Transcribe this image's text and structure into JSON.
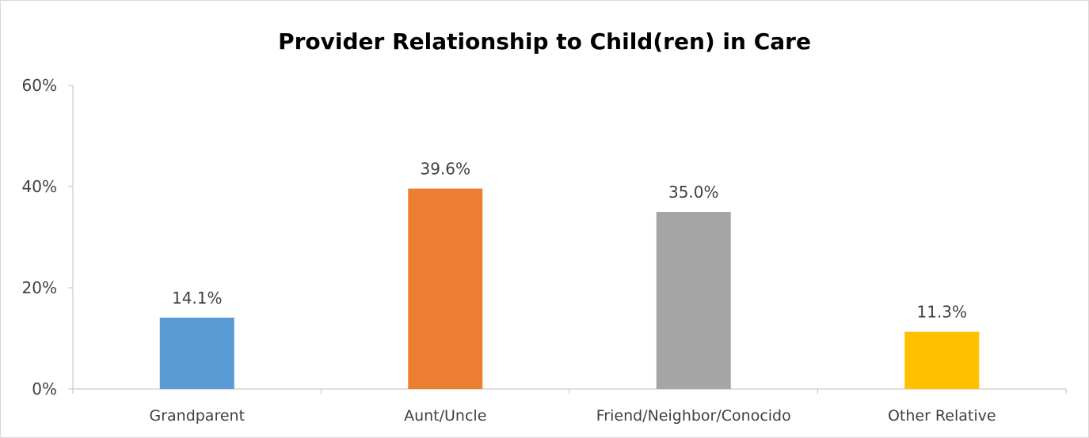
{
  "chart_data": {
    "type": "bar",
    "title": "Provider Relationship to Child(ren) in Care",
    "xlabel": "",
    "ylabel": "",
    "categories": [
      "Grandparent",
      "Aunt/Uncle",
      "Friend/Neighbor/Conocido",
      "Other Relative"
    ],
    "values": [
      14.1,
      39.6,
      35.0,
      11.3
    ],
    "data_labels": [
      "14.1%",
      "39.6%",
      "35.0%",
      "11.3%"
    ],
    "colors": [
      "#5b9bd5",
      "#ed7d31",
      "#a5a5a5",
      "#ffc000"
    ],
    "ylim": [
      0,
      60
    ],
    "yticks": [
      0,
      20,
      40,
      60
    ],
    "ytick_labels": [
      "0%",
      "20%",
      "40%",
      "60%"
    ],
    "grid": false,
    "legend": "none"
  }
}
